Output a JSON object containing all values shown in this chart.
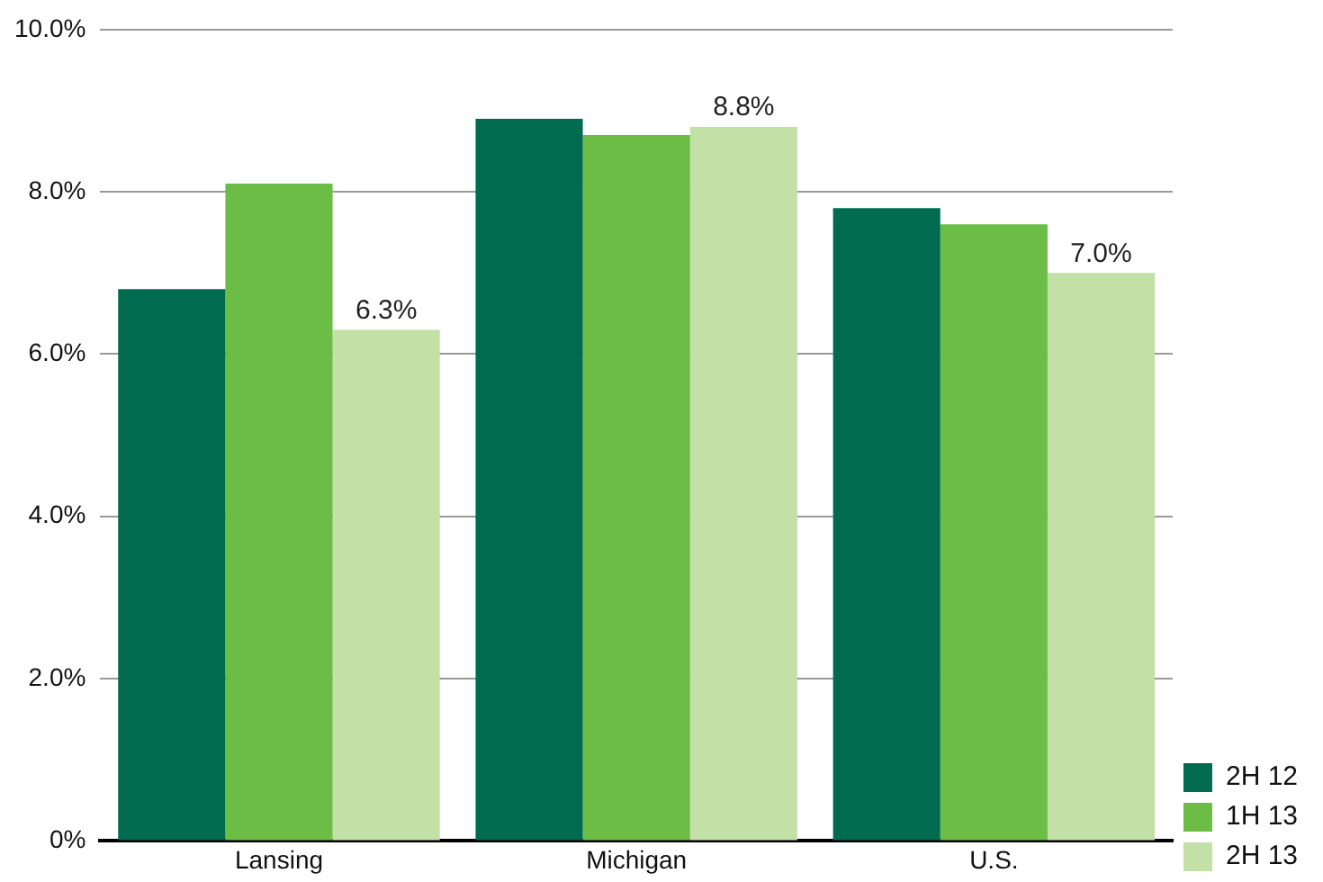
{
  "chart_data": {
    "type": "bar",
    "categories": [
      "Lansing",
      "Michigan",
      "U.S."
    ],
    "series": [
      {
        "name": "2H 12",
        "color": "#006b4f",
        "values": [
          6.8,
          8.9,
          7.8
        ]
      },
      {
        "name": "1H 13",
        "color": "#6cbd45",
        "values": [
          8.1,
          8.7,
          7.6
        ]
      },
      {
        "name": "2H 13",
        "color": "#c3e0a6",
        "values": [
          6.3,
          8.8,
          7.0
        ],
        "value_labels": [
          "6.3%",
          "8.8%",
          "7.0%"
        ]
      }
    ],
    "ylim": [
      0,
      10
    ],
    "yticks": [
      {
        "value": 0,
        "label": "0%"
      },
      {
        "value": 2,
        "label": "2.0%"
      },
      {
        "value": 4,
        "label": "4.0%"
      },
      {
        "value": 6,
        "label": "6.0%"
      },
      {
        "value": 8,
        "label": "8.0%"
      },
      {
        "value": 10,
        "label": "10.0%"
      }
    ],
    "grid": "y",
    "legend": "bottom right"
  }
}
